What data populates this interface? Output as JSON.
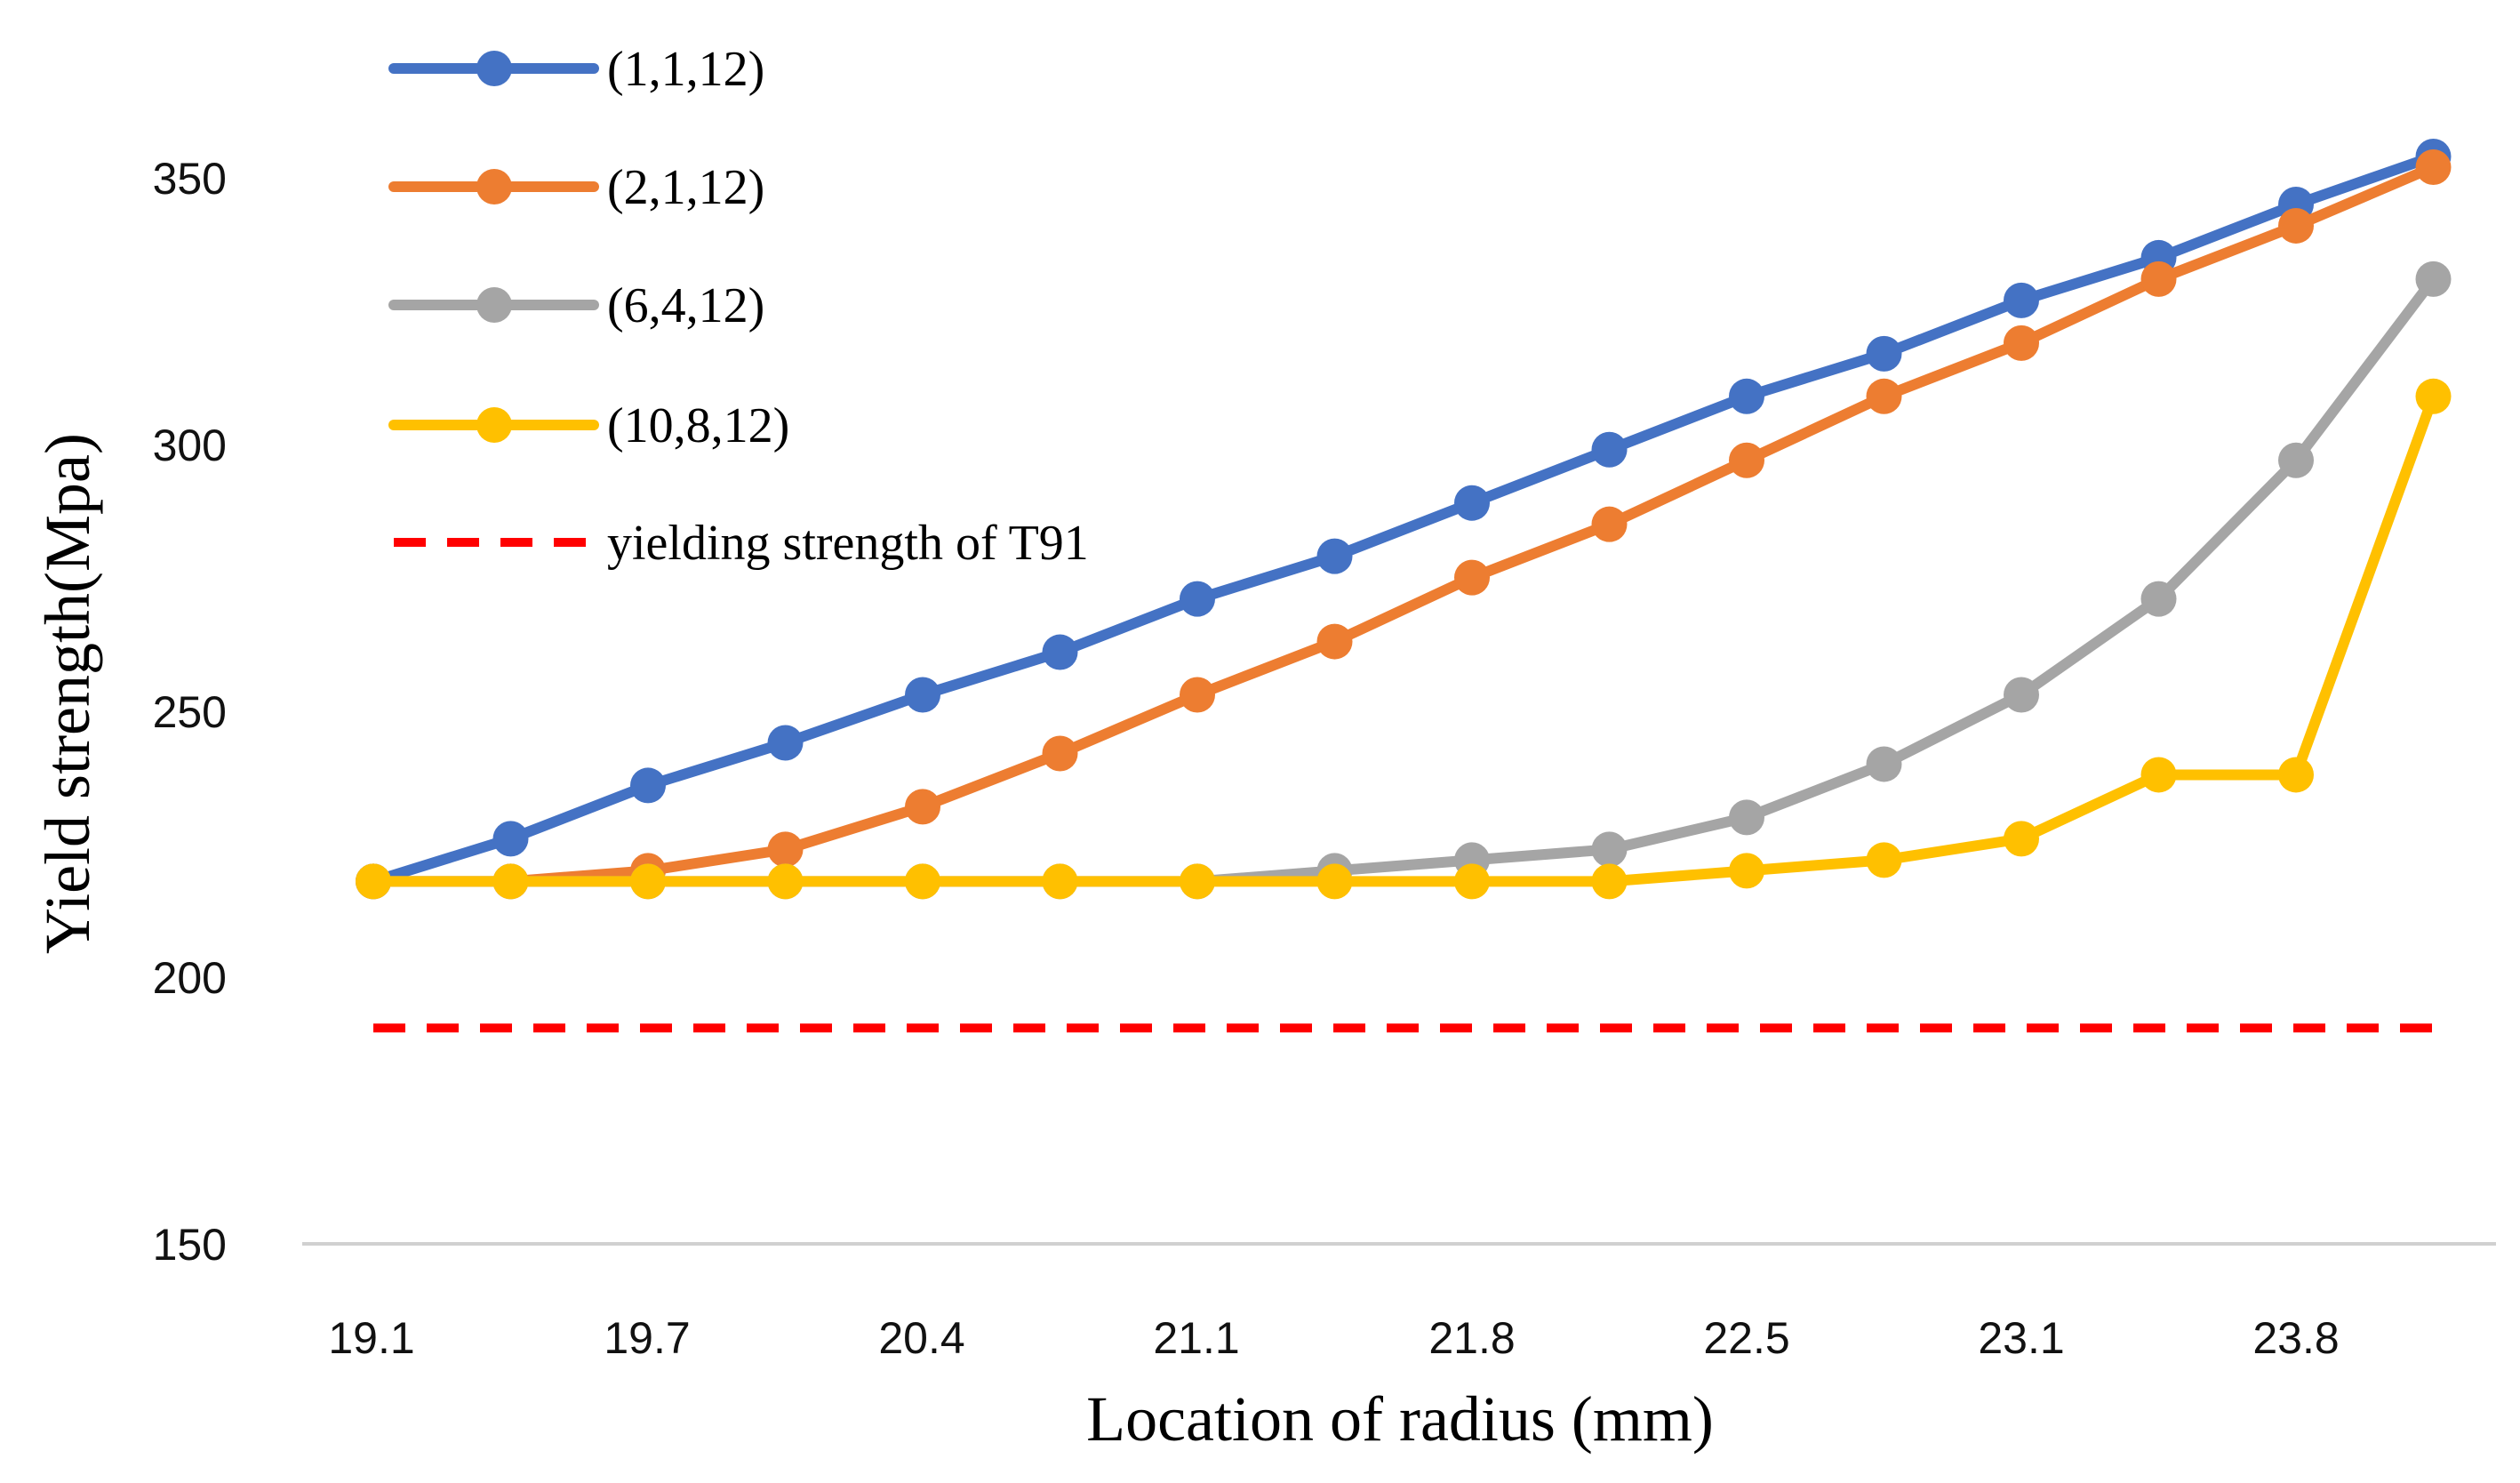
{
  "chart_data": {
    "type": "line",
    "xlabel": "Location of radius (mm)",
    "ylabel": "Yield strength(Mpa)",
    "ylim": [
      150,
      375
    ],
    "yticks": [
      150,
      200,
      250,
      300,
      350
    ],
    "x_tick_labels": [
      "19.1",
      "19.7",
      "20.4",
      "21.1",
      "21.8",
      "22.5",
      "23.1",
      "23.8"
    ],
    "points_per_series": 16,
    "series": [
      {
        "name": "(1,1,12)",
        "color": "#4472C4",
        "values": [
          218,
          226,
          236,
          244,
          253,
          261,
          271,
          279,
          289,
          299,
          309,
          317,
          327,
          335,
          345,
          354
        ]
      },
      {
        "name": "(2,1,12)",
        "color": "#ED7D31",
        "values": [
          218,
          218,
          220,
          224,
          232,
          242,
          253,
          263,
          275,
          285,
          297,
          309,
          319,
          331,
          341,
          352
        ]
      },
      {
        "name": "(6,4,12)",
        "color": "#A5A5A5",
        "values": [
          218,
          218,
          218,
          218,
          218,
          218,
          218,
          220,
          222,
          224,
          230,
          240,
          253,
          271,
          297,
          331
        ]
      },
      {
        "name": "(10,8,12)",
        "color": "#FFC000",
        "values": [
          218,
          218,
          218,
          218,
          218,
          218,
          218,
          218,
          218,
          218,
          220,
          222,
          226,
          238,
          238,
          309
        ]
      }
    ],
    "reference_line": {
      "name": "yielding strength of T91",
      "value": 190.5,
      "color": "#FF0000",
      "style": "dashed"
    }
  }
}
